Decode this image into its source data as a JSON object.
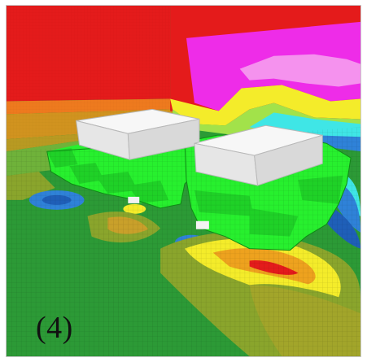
{
  "figure": {
    "panel_label": "(4)",
    "scene": "voxel-model-field-visualization",
    "palette": {
      "red": "#e41b1b",
      "magenta": "#ee2ce8",
      "pink": "#f592ee",
      "orange": "#eea21e",
      "yellow": "#f4ec2a",
      "light-green": "#a2e24a",
      "cyan": "#3fe6e6",
      "blue": "#2f82d8",
      "dark-blue": "#1f5fb8",
      "dark-green": "#2c9a36",
      "olive": "#8aa52c",
      "bright-green": "#27f02e",
      "white-block": "#f3f3f3"
    }
  }
}
